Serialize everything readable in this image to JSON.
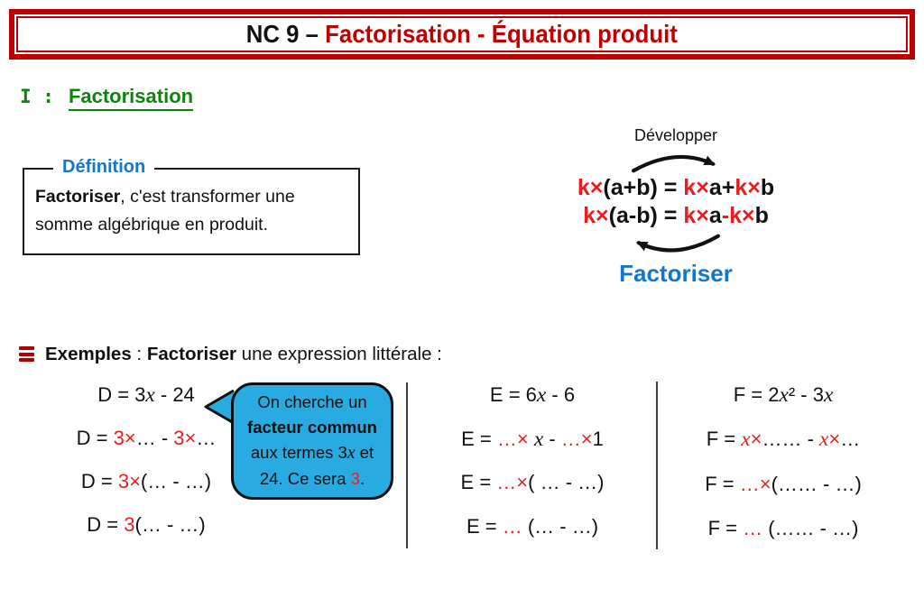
{
  "colors": {
    "banner_red": "#c00000",
    "formula_red": "#ed1c1c",
    "section_green": "#0f830f",
    "label_blue": "#1276cf",
    "bubble_blue": "#29abe2"
  },
  "banner": {
    "segments": [
      {
        "t": "NC 9 – "
      },
      {
        "t": "Factorisation - Équation produit",
        "color": "#c00000"
      }
    ]
  },
  "section": {
    "numeral": "I :",
    "title": "Factorisation"
  },
  "definition": {
    "label": "Définition",
    "segments": [
      {
        "t": "Factoriser",
        "bold": true
      },
      {
        "t": ", c'est transformer une somme algébrique en produit."
      }
    ]
  },
  "diagram": {
    "top_label": "Développer",
    "bottom_label": "Factoriser",
    "formulas": [
      {
        "segments": [
          {
            "t": "k×",
            "color": "#ed1c1c"
          },
          {
            "t": "(a+b) = "
          },
          {
            "t": "k×",
            "color": "#ed1c1c"
          },
          {
            "t": "a+"
          },
          {
            "t": "k×",
            "color": "#ed1c1c"
          },
          {
            "t": "b"
          }
        ]
      },
      {
        "segments": [
          {
            "t": "k×",
            "color": "#ed1c1c"
          },
          {
            "t": "(a-b) = "
          },
          {
            "t": "k×",
            "color": "#ed1c1c"
          },
          {
            "t": "a"
          },
          {
            "t": "-",
            "color": "#ed1c1c"
          },
          {
            "t": "k×",
            "color": "#ed1c1c"
          },
          {
            "t": "b"
          }
        ]
      }
    ]
  },
  "examples_header": {
    "segments": [
      {
        "t": "Exemples",
        "bold": true
      },
      {
        "t": " : "
      },
      {
        "t": "Factoriser",
        "bold": true
      },
      {
        "t": " une expression littérale :"
      }
    ]
  },
  "columns": [
    {
      "name": "D",
      "rows": [
        [
          {
            "t": "D = 3"
          },
          {
            "t": "x",
            "italic": true
          },
          {
            "t": " - 24"
          }
        ],
        [
          {
            "t": "D = "
          },
          {
            "t": "3×",
            "color": "#ed1c1c"
          },
          {
            "t": "… - "
          },
          {
            "t": "3×",
            "color": "#ed1c1c"
          },
          {
            "t": "…"
          }
        ],
        [
          {
            "t": "D = "
          },
          {
            "t": "3×",
            "color": "#ed1c1c"
          },
          {
            "t": "(… - …)"
          }
        ],
        [
          {
            "t": "D = "
          },
          {
            "t": "3",
            "color": "#ed1c1c"
          },
          {
            "t": "(… - …)"
          }
        ]
      ]
    },
    {
      "name": "E",
      "rows": [
        [
          {
            "t": "E = 6"
          },
          {
            "t": "x",
            "italic": true
          },
          {
            "t": " - 6"
          }
        ],
        [
          {
            "t": "E = "
          },
          {
            "t": "…×",
            "color": "#ed1c1c"
          },
          {
            "t": " "
          },
          {
            "t": "x",
            "italic": true
          },
          {
            "t": " - "
          },
          {
            "t": "…×",
            "color": "#ed1c1c"
          },
          {
            "t": "1"
          }
        ],
        [
          {
            "t": "E = "
          },
          {
            "t": "…×",
            "color": "#ed1c1c"
          },
          {
            "t": "( … - …)"
          }
        ],
        [
          {
            "t": "E = "
          },
          {
            "t": "…",
            "color": "#ed1c1c"
          },
          {
            "t": " (… - …)"
          }
        ]
      ]
    },
    {
      "name": "F",
      "rows": [
        [
          {
            "t": "F = 2"
          },
          {
            "t": "x",
            "italic": true
          },
          {
            "t": "² - 3"
          },
          {
            "t": "x",
            "italic": true
          }
        ],
        [
          {
            "t": "F = "
          },
          {
            "t": "x",
            "color": "#ed1c1c",
            "italic": true
          },
          {
            "t": "×",
            "color": "#ed1c1c"
          },
          {
            "t": "…… - "
          },
          {
            "t": "x",
            "color": "#ed1c1c",
            "italic": true
          },
          {
            "t": "×",
            "color": "#ed1c1c"
          },
          {
            "t": "…"
          }
        ],
        [
          {
            "t": "F = "
          },
          {
            "t": "…×",
            "color": "#ed1c1c"
          },
          {
            "t": "(…… - …)"
          }
        ],
        [
          {
            "t": "F = "
          },
          {
            "t": "…",
            "color": "#ed1c1c"
          },
          {
            "t": " (…… - …)"
          }
        ]
      ]
    }
  ],
  "bubble": {
    "lines": [
      [
        {
          "t": "On cherche un"
        }
      ],
      [
        {
          "t": "facteur commun",
          "bold": true
        }
      ],
      [
        {
          "t": "aux termes 3"
        },
        {
          "t": "x",
          "italic": true
        },
        {
          "t": " et"
        }
      ],
      [
        {
          "t": "24. Ce sera "
        },
        {
          "t": "3",
          "color": "#ed1c1c"
        },
        {
          "t": "."
        }
      ]
    ]
  }
}
